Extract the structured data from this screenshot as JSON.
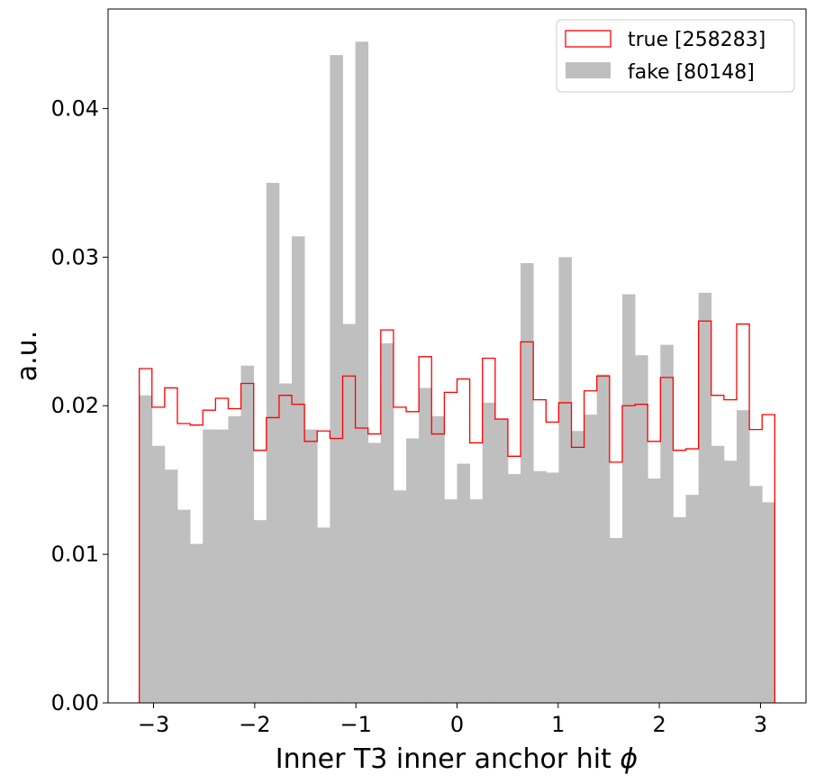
{
  "chart_data": {
    "type": "histogram",
    "xlabel": "Inner T3 inner anchor hit",
    "xlabel_symbol": "ϕ",
    "ylabel": "a.u.",
    "xlim": [
      -3.45,
      3.45
    ],
    "ylim": [
      0,
      0.0467
    ],
    "x_ticks": [
      -3,
      -2,
      -1,
      0,
      1,
      2,
      3
    ],
    "x_tick_labels": [
      "−3",
      "−2",
      "−1",
      "0",
      "1",
      "2",
      "3"
    ],
    "y_ticks": [
      0,
      0.01,
      0.02,
      0.03,
      0.04
    ],
    "y_tick_labels": [
      "0.00",
      "0.01",
      "0.02",
      "0.03",
      "0.04"
    ],
    "bin_range": [
      -3.14159,
      3.14159
    ],
    "n_bins": 50,
    "legend_position": "top-right",
    "series": [
      {
        "name": "true [258283]",
        "style": "step",
        "color": "#ff0000",
        "values": [
          0.0225,
          0.0199,
          0.0212,
          0.0188,
          0.0187,
          0.0197,
          0.0205,
          0.0198,
          0.0215,
          0.017,
          0.0192,
          0.0207,
          0.0201,
          0.0176,
          0.0183,
          0.0178,
          0.022,
          0.0185,
          0.0181,
          0.0251,
          0.0199,
          0.0196,
          0.0233,
          0.0181,
          0.0209,
          0.0218,
          0.0175,
          0.0232,
          0.0191,
          0.0166,
          0.0243,
          0.0204,
          0.0189,
          0.0202,
          0.0172,
          0.021,
          0.022,
          0.0162,
          0.02,
          0.0201,
          0.0176,
          0.0219,
          0.017,
          0.0171,
          0.0257,
          0.0207,
          0.0204,
          0.0255,
          0.0184,
          0.0194
        ]
      },
      {
        "name": "fake [80148]",
        "style": "filled",
        "color": "#bfbfbf",
        "values": [
          0.0207,
          0.0173,
          0.0157,
          0.013,
          0.0107,
          0.0184,
          0.0184,
          0.0193,
          0.0227,
          0.0123,
          0.035,
          0.0215,
          0.0314,
          0.0184,
          0.0118,
          0.0436,
          0.0255,
          0.0445,
          0.0175,
          0.0242,
          0.0143,
          0.0178,
          0.0212,
          0.0193,
          0.0137,
          0.0161,
          0.0137,
          0.0202,
          0.0191,
          0.0154,
          0.0296,
          0.0156,
          0.0155,
          0.03,
          0.0183,
          0.0194,
          0.0221,
          0.0111,
          0.0275,
          0.0234,
          0.0151,
          0.0241,
          0.0125,
          0.014,
          0.0276,
          0.0173,
          0.0163,
          0.0197,
          0.0146,
          0.0135
        ]
      }
    ]
  }
}
